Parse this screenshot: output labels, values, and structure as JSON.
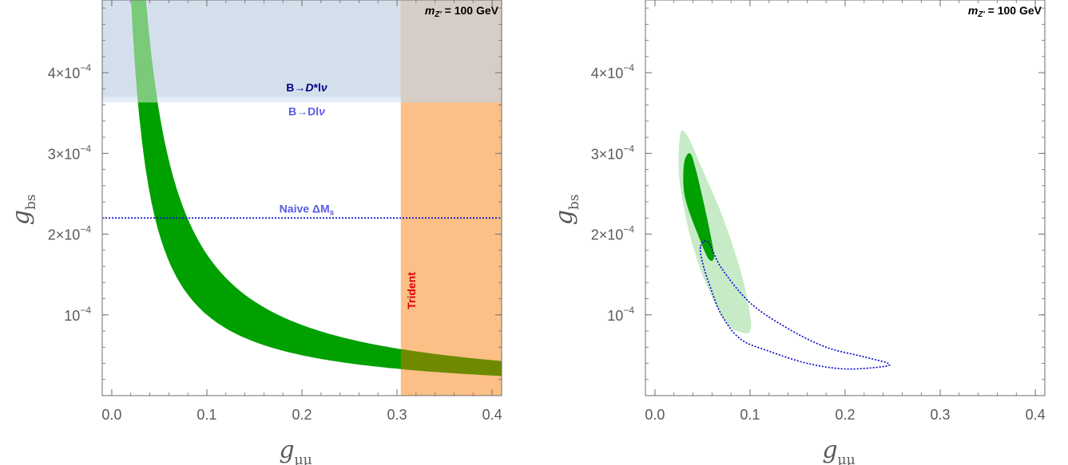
{
  "colors": {
    "band_green": "#00a000",
    "light_green": "#c6ebc6",
    "blue_fill": "#d3e0ec",
    "light_blue_fill": "#e3edf8",
    "orange_fill": "#fcbf85",
    "overlap_gray": "#d6cdc7",
    "overlap_olive": "#6f8a00",
    "dotted_blue": "#0000cc",
    "label_dark_blue": "#00008b",
    "label_blue": "#5a5ae6",
    "trident_red": "#e00000",
    "axis_gray": "#6e6e6e"
  },
  "chart_data": [
    {
      "type": "area",
      "xlabel": "g",
      "xlabel_sub": "μμ",
      "ylabel": "g",
      "ylabel_sub": "bs",
      "xlim": [
        -0.01,
        0.41
      ],
      "ylim": [
        0.0,
        0.00049
      ],
      "xticks": [
        {
          "value": 0.0,
          "label": "0.0"
        },
        {
          "value": 0.1,
          "label": "0.1"
        },
        {
          "value": 0.2,
          "label": "0.2"
        },
        {
          "value": 0.3,
          "label": "0.3"
        },
        {
          "value": 0.4,
          "label": "0.4"
        }
      ],
      "yticks": [
        {
          "value": 0.0001,
          "mant": "10",
          "exp": "−4"
        },
        {
          "value": 0.0002,
          "mant": "2×10",
          "exp": "−4"
        },
        {
          "value": 0.0003,
          "mant": "3×10",
          "exp": "−4"
        },
        {
          "value": 0.0004,
          "mant": "4×10",
          "exp": "−4"
        }
      ],
      "mass_label": {
        "pre": "m",
        "sub": "Z'",
        "post": " = 100 GeV"
      },
      "band": {
        "name": "",
        "lower_k": 1e-05,
        "upper_k": 1.75e-05,
        "x_from": 0.012
      },
      "exclusions": [
        {
          "label_pre": "B→",
          "label_italic": "D",
          "label_post": "*l",
          "label_nu": "ν",
          "y_min": 0.00037
        },
        {
          "label_pre": "B→Dl",
          "label_italic": "",
          "label_post": "",
          "label_nu": "ν",
          "y_min": 0.000363
        },
        {
          "label_pre": "Trident",
          "label_italic": "",
          "label_post": "",
          "label_nu": "",
          "x_min": 0.304
        }
      ],
      "naive_line": {
        "label_pre": "Naive ΔM",
        "label_sub": "s",
        "y": 0.00022
      }
    },
    {
      "type": "area",
      "xlabel": "g",
      "xlabel_sub": "μμ",
      "ylabel": "g",
      "ylabel_sub": "bs",
      "xlim": [
        -0.01,
        0.41
      ],
      "ylim": [
        0.0,
        0.00049
      ],
      "xticks": [
        {
          "value": 0.0,
          "label": "0.0"
        },
        {
          "value": 0.1,
          "label": "0.1"
        },
        {
          "value": 0.2,
          "label": "0.2"
        },
        {
          "value": 0.3,
          "label": "0.3"
        },
        {
          "value": 0.4,
          "label": "0.4"
        }
      ],
      "yticks": [
        {
          "value": 0.0001,
          "mant": "10",
          "exp": "−4"
        },
        {
          "value": 0.0002,
          "mant": "2×10",
          "exp": "−4"
        },
        {
          "value": 0.0003,
          "mant": "3×10",
          "exp": "−4"
        },
        {
          "value": 0.0004,
          "mant": "4×10",
          "exp": "−4"
        }
      ],
      "mass_label": {
        "pre": "m",
        "sub": "Z'",
        "post": " = 100 GeV"
      },
      "regions": [
        {
          "name": "",
          "points": [
            [
              0.027,
              0.000325
            ],
            [
              0.035,
              0.00032
            ],
            [
              0.05,
              0.00028
            ],
            [
              0.07,
              0.000225
            ],
            [
              0.09,
              0.000155
            ],
            [
              0.1,
              0.0001
            ],
            [
              0.1,
              8e-05
            ],
            [
              0.092,
              7.8e-05
            ],
            [
              0.075,
              9e-05
            ],
            [
              0.055,
              0.000135
            ],
            [
              0.04,
              0.000185
            ],
            [
              0.03,
              0.000235
            ],
            [
              0.025,
              0.00028
            ]
          ]
        },
        {
          "name": "",
          "points": [
            [
              0.031,
              0.00029
            ],
            [
              0.037,
              0.0003
            ],
            [
              0.043,
              0.00028
            ],
            [
              0.052,
              0.000235
            ],
            [
              0.06,
              0.00019
            ],
            [
              0.062,
              0.00017
            ],
            [
              0.056,
              0.00017
            ],
            [
              0.045,
              0.0002
            ],
            [
              0.034,
              0.000235
            ],
            [
              0.03,
              0.00026
            ]
          ]
        }
      ],
      "contour": {
        "name": "",
        "points": [
          [
            0.048,
            0.000185
          ],
          [
            0.056,
            0.00019
          ],
          [
            0.07,
            0.000158
          ],
          [
            0.1,
            0.000115
          ],
          [
            0.14,
            8.3e-05
          ],
          [
            0.18,
            6e-05
          ],
          [
            0.22,
            4.8e-05
          ],
          [
            0.245,
            4e-05
          ],
          [
            0.24,
            3.6e-05
          ],
          [
            0.2,
            3.3e-05
          ],
          [
            0.16,
            4e-05
          ],
          [
            0.12,
            5.5e-05
          ],
          [
            0.09,
            7e-05
          ],
          [
            0.07,
            0.0001
          ],
          [
            0.058,
            0.000135
          ],
          [
            0.05,
            0.000165
          ]
        ]
      }
    }
  ]
}
